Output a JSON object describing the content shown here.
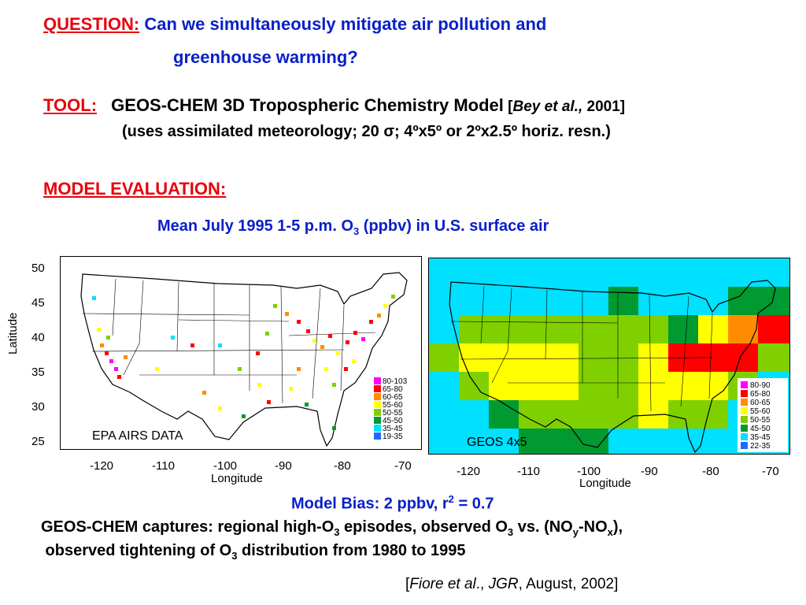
{
  "question": {
    "label": "QUESTION:",
    "line1": "Can we simultaneously mitigate air pollution and",
    "line2": "greenhouse warming?"
  },
  "tool": {
    "label": "TOOL:",
    "line1_main": "GEOS-CHEM 3D Tropospheric Chemistry Model",
    "line1_ref_open": " [",
    "line1_ref_italic": "Bey et al.,",
    "line1_ref_close": " 2001]",
    "line2": "(uses assimilated meteorology; 20 σ; 4ºx5º or 2ºx2.5º horiz. resn.)"
  },
  "evaluation": {
    "label": "MODEL EVALUATION:",
    "caption_pre": "Mean July 1995 1-5 p.m. O",
    "caption_sub": "3",
    "caption_post": " (ppbv) in U.S. surface air"
  },
  "left_map": {
    "panel_label": "EPA AIRS DATA",
    "ylabel": "Latitude",
    "xlabel": "Longitude",
    "y_ticks": [
      "50",
      "45",
      "40",
      "35",
      "30",
      "25"
    ],
    "x_ticks": [
      "-120",
      "-110",
      "-100",
      "-90",
      "-80",
      "-70"
    ],
    "legend": [
      {
        "label": "80-103",
        "color": "#ff00ff"
      },
      {
        "label": "65-80",
        "color": "#ff0000"
      },
      {
        "label": "60-65",
        "color": "#ff8c00"
      },
      {
        "label": "55-60",
        "color": "#ffff00"
      },
      {
        "label": "50-55",
        "color": "#80d000"
      },
      {
        "label": "45-50",
        "color": "#009a30"
      },
      {
        "label": "35-45",
        "color": "#00e0ff"
      },
      {
        "label": "19-35",
        "color": "#1e6cff"
      }
    ]
  },
  "right_map": {
    "panel_label": "GEOS 4x5",
    "xlabel": "Longitude",
    "x_ticks": [
      "-120",
      "-110",
      "-100",
      "-90",
      "-80",
      "-70"
    ],
    "legend": [
      {
        "label": "80-90",
        "color": "#ff00ff"
      },
      {
        "label": "65-80",
        "color": "#ff0000"
      },
      {
        "label": "60-65",
        "color": "#ff8c00"
      },
      {
        "label": "55-60",
        "color": "#ffff00"
      },
      {
        "label": "50-55",
        "color": "#80d000"
      },
      {
        "label": "45-50",
        "color": "#009a30"
      },
      {
        "label": "35-45",
        "color": "#00e0ff"
      },
      {
        "label": "22-35",
        "color": "#1e6cff"
      }
    ]
  },
  "bias": {
    "pre": "Model Bias: 2 ppbv, r",
    "sup": "2",
    "post": " = 0.7"
  },
  "captures": {
    "l1_a": "GEOS-CHEM captures: regional high-O",
    "l1_sub1": "3",
    "l1_b": " episodes, observed O",
    "l1_sub2": "3",
    "l1_c": " vs. (NO",
    "l1_sub3": "y",
    "l1_d": "-NO",
    "l1_sub4": "x",
    "l1_e": "),",
    "l2_a": " observed tightening of O",
    "l2_sub": "3",
    "l2_b": " distribution from 1980 to 1995"
  },
  "citation": {
    "open": "[",
    "author": "Fiore et al",
    "dot": "., ",
    "journal": "JGR",
    "rest": ", August, 2002]"
  }
}
